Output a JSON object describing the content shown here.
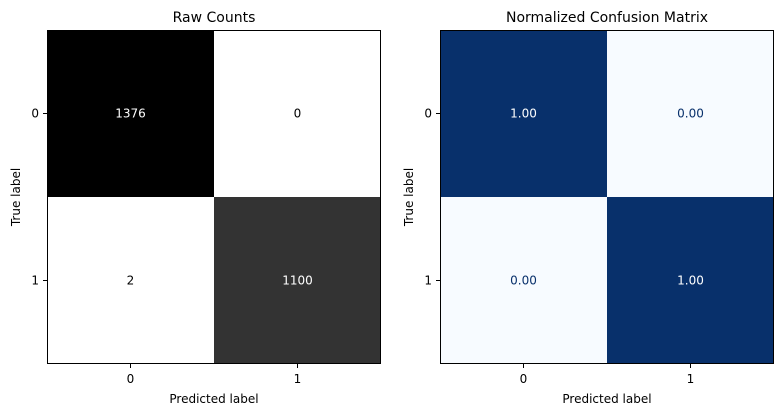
{
  "chart_data": [
    {
      "type": "heatmap",
      "title": "Raw Counts",
      "xlabel": "Predicted label",
      "ylabel": "True label",
      "x_categories": [
        "0",
        "1"
      ],
      "y_categories": [
        "0",
        "1"
      ],
      "values": [
        [
          1376,
          0
        ],
        [
          2,
          1100
        ]
      ],
      "value_labels": [
        [
          "1376",
          "0"
        ],
        [
          "2",
          "1100"
        ]
      ],
      "colormap": "gray_r",
      "colors": {
        "low": "#ffffff",
        "high": "#000000"
      },
      "colorbar": false,
      "grid": false
    },
    {
      "type": "heatmap",
      "title": "Normalized Confusion Matrix",
      "xlabel": "Predicted label",
      "ylabel": "True label",
      "x_categories": [
        "0",
        "1"
      ],
      "y_categories": [
        "0",
        "1"
      ],
      "values": [
        [
          1.0,
          0.0
        ],
        [
          0.0,
          1.0
        ]
      ],
      "value_labels": [
        [
          "1.00",
          "0.00"
        ],
        [
          "0.00",
          "1.00"
        ]
      ],
      "colormap": "Blues",
      "colors": {
        "low": "#f7fbff",
        "high": "#08306b"
      },
      "colorbar": false,
      "grid": false
    }
  ]
}
